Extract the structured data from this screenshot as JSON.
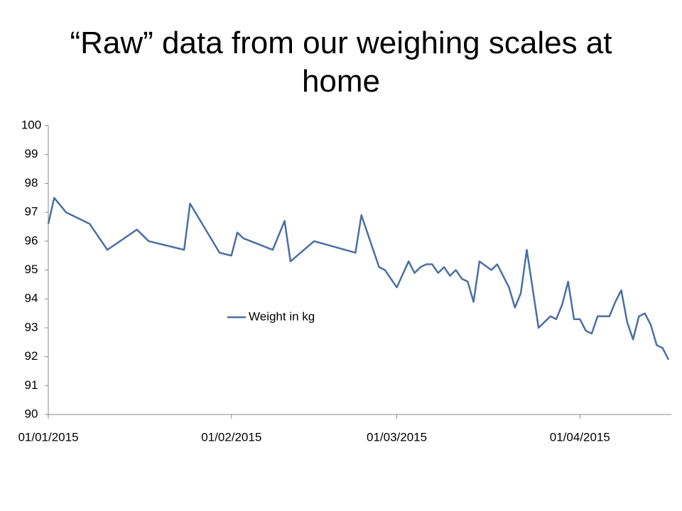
{
  "chart_data": {
    "type": "line",
    "title": "“Raw” data from our weighing scales at home",
    "x": [
      "2015-01-01",
      "2015-01-02",
      "2015-01-04",
      "2015-01-08",
      "2015-01-11",
      "2015-01-16",
      "2015-01-18",
      "2015-01-24",
      "2015-01-25",
      "2015-01-30",
      "2015-02-01",
      "2015-02-02",
      "2015-02-03",
      "2015-02-08",
      "2015-02-10",
      "2015-02-11",
      "2015-02-15",
      "2015-02-22",
      "2015-02-23",
      "2015-02-25",
      "2015-02-26",
      "2015-02-27",
      "2015-03-01",
      "2015-03-03",
      "2015-03-04",
      "2015-03-05",
      "2015-03-06",
      "2015-03-07",
      "2015-03-08",
      "2015-03-09",
      "2015-03-10",
      "2015-03-11",
      "2015-03-12",
      "2015-03-13",
      "2015-03-14",
      "2015-03-15",
      "2015-03-17",
      "2015-03-18",
      "2015-03-20",
      "2015-03-21",
      "2015-03-22",
      "2015-03-23",
      "2015-03-25",
      "2015-03-26",
      "2015-03-27",
      "2015-03-28",
      "2015-03-29",
      "2015-03-30",
      "2015-03-31",
      "2015-04-01",
      "2015-04-02",
      "2015-04-03",
      "2015-04-04",
      "2015-04-06",
      "2015-04-07",
      "2015-04-08",
      "2015-04-09",
      "2015-04-10",
      "2015-04-11",
      "2015-04-12",
      "2015-04-13",
      "2015-04-14",
      "2015-04-15",
      "2015-04-16"
    ],
    "series": [
      {
        "name": "Weight in kg",
        "color": "#4a6fa5",
        "values": [
          96.6,
          97.5,
          97.0,
          96.6,
          95.7,
          96.4,
          96.0,
          95.7,
          97.3,
          95.6,
          95.5,
          96.3,
          96.1,
          95.7,
          96.7,
          95.3,
          96.0,
          95.6,
          96.9,
          95.7,
          95.1,
          95.0,
          94.4,
          95.3,
          94.9,
          95.1,
          95.2,
          95.2,
          94.9,
          95.1,
          94.8,
          95.0,
          94.7,
          94.6,
          93.9,
          95.3,
          95.0,
          95.2,
          94.4,
          93.7,
          94.2,
          95.7,
          93.0,
          93.2,
          93.4,
          93.3,
          93.8,
          94.6,
          93.3,
          93.3,
          92.9,
          92.8,
          93.4,
          93.4,
          93.9,
          94.3,
          93.2,
          92.6,
          93.4,
          93.5,
          93.1,
          92.4,
          92.3,
          91.9
        ]
      }
    ],
    "xlim": [
      "2015-01-01",
      "2015-04-16"
    ],
    "xticks": [
      {
        "value": "2015-01-01",
        "label": "01/01/2015"
      },
      {
        "value": "2015-02-01",
        "label": "01/02/2015"
      },
      {
        "value": "2015-03-01",
        "label": "01/03/2015"
      },
      {
        "value": "2015-04-01",
        "label": "01/04/2015"
      }
    ],
    "ylim": [
      90,
      100
    ],
    "yticks": [
      90,
      91,
      92,
      93,
      94,
      95,
      96,
      97,
      98,
      99,
      100
    ],
    "grid": false,
    "legend": "center"
  }
}
